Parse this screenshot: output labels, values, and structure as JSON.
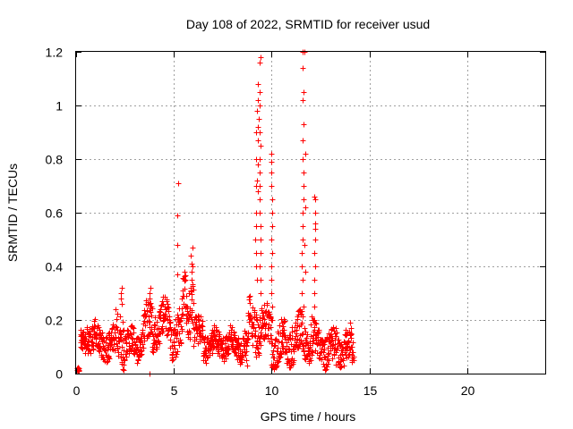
{
  "chart_data": {
    "type": "scatter",
    "title": "Day 108 of 2022, SRMTID for receiver usud",
    "xlabel": "GPS time / hours",
    "ylabel": "SRMTID / TECUs",
    "xlim": [
      0,
      24
    ],
    "ylim": [
      0,
      1.2
    ],
    "x_ticks": [
      0,
      5,
      10,
      15,
      20
    ],
    "x_tick_labels": [
      "0",
      "5",
      "10",
      "15",
      "20"
    ],
    "y_ticks": [
      0,
      0.2,
      0.4,
      0.6,
      0.8,
      1,
      1.2
    ],
    "y_tick_labels": [
      "0",
      "0.2",
      "0.4",
      "0.6",
      "0.8",
      "1",
      "1.2"
    ],
    "grid": true,
    "marker": "+",
    "color": "#ff0000",
    "series": [
      {
        "name": "SRMTID",
        "segments": [
          {
            "x0": 0.05,
            "x1": 0.15,
            "baseline": 0.005,
            "spread": 0.005
          },
          {
            "x0": 0.2,
            "x1": 0.5,
            "baseline": 0.11,
            "spread": 0.04
          },
          {
            "x0": 0.5,
            "x1": 1.0,
            "baseline": 0.14,
            "spread": 0.05
          },
          {
            "x0": 1.0,
            "x1": 2.0,
            "baseline": 0.11,
            "spread": 0.05
          },
          {
            "x0": 2.0,
            "x1": 2.5,
            "baseline": 0.15,
            "spread": 0.1
          },
          {
            "x0": 2.5,
            "x1": 3.3,
            "baseline": 0.11,
            "spread": 0.05
          },
          {
            "x0": 3.3,
            "x1": 4.2,
            "baseline": 0.17,
            "spread": 0.08
          },
          {
            "x0": 4.2,
            "x1": 4.8,
            "baseline": 0.19,
            "spread": 0.07
          },
          {
            "x0": 4.8,
            "x1": 5.4,
            "baseline": 0.15,
            "spread": 0.07
          },
          {
            "x0": 5.4,
            "x1": 6.0,
            "baseline": 0.27,
            "spread": 0.1
          },
          {
            "x0": 6.0,
            "x1": 6.5,
            "baseline": 0.14,
            "spread": 0.06
          },
          {
            "x0": 6.5,
            "x1": 8.8,
            "baseline": 0.11,
            "spread": 0.05
          },
          {
            "x0": 8.8,
            "x1": 9.3,
            "baseline": 0.18,
            "spread": 0.08
          },
          {
            "x0": 9.3,
            "x1": 10.0,
            "baseline": 0.17,
            "spread": 0.07
          },
          {
            "x0": 10.0,
            "x1": 11.0,
            "baseline": 0.11,
            "spread": 0.07
          },
          {
            "x0": 11.0,
            "x1": 11.5,
            "baseline": 0.14,
            "spread": 0.08
          },
          {
            "x0": 11.5,
            "x1": 12.2,
            "baseline": 0.14,
            "spread": 0.08
          },
          {
            "x0": 12.2,
            "x1": 13.0,
            "baseline": 0.1,
            "spread": 0.06
          },
          {
            "x0": 13.0,
            "x1": 14.2,
            "baseline": 0.09,
            "spread": 0.07
          }
        ],
        "spikes": [
          {
            "x": 5.2,
            "values": [
              0.71,
              0.59,
              0.48,
              0.37
            ]
          },
          {
            "x": 5.9,
            "values": [
              0.47,
              0.44,
              0.41,
              0.4,
              0.38,
              0.35,
              0.32
            ]
          },
          {
            "x": 9.2,
            "values": [
              0.9,
              0.8,
              0.7,
              0.6,
              0.55,
              0.5,
              0.45,
              0.4,
              0.35
            ]
          },
          {
            "x": 9.4,
            "values": [
              1.18,
              1.16,
              1.05,
              1.0,
              0.95,
              0.9,
              0.85,
              0.8,
              0.75,
              0.7,
              0.65,
              0.6,
              0.55,
              0.5,
              0.45,
              0.4,
              0.35,
              0.3
            ]
          },
          {
            "x": 9.3,
            "values": [
              1.08,
              1.02,
              0.98,
              0.92,
              0.87,
              0.78,
              0.72,
              0.68
            ]
          },
          {
            "x": 10.0,
            "values": [
              0.82,
              0.79,
              0.75,
              0.7,
              0.65,
              0.6,
              0.55,
              0.5,
              0.45,
              0.4,
              0.35,
              0.3,
              0.25,
              0.2
            ]
          },
          {
            "x": 11.6,
            "values": [
              1.2,
              1.14,
              1.05,
              1.02,
              0.93,
              0.87,
              0.8,
              0.75,
              0.7,
              0.65,
              0.6,
              0.55,
              0.5,
              0.45,
              0.4,
              0.35,
              0.3,
              0.25
            ]
          },
          {
            "x": 11.7,
            "values": [
              1.2,
              0.82,
              0.62,
              0.48,
              0.38
            ]
          },
          {
            "x": 12.2,
            "values": [
              0.66,
              0.65,
              0.6,
              0.56,
              0.54,
              0.5,
              0.45,
              0.4,
              0.35,
              0.3,
              0.25,
              0.2
            ]
          },
          {
            "x": 3.8,
            "values": [
              0.32,
              0.3,
              0.28,
              0.25,
              0.23
            ]
          },
          {
            "x": 3.8,
            "values": [
              0.0
            ]
          },
          {
            "x": 2.3,
            "values": [
              0.32,
              0.3,
              0.28,
              0.26
            ]
          },
          {
            "x": 8.7,
            "values": [
              0.03,
              0.05
            ]
          }
        ]
      }
    ]
  }
}
